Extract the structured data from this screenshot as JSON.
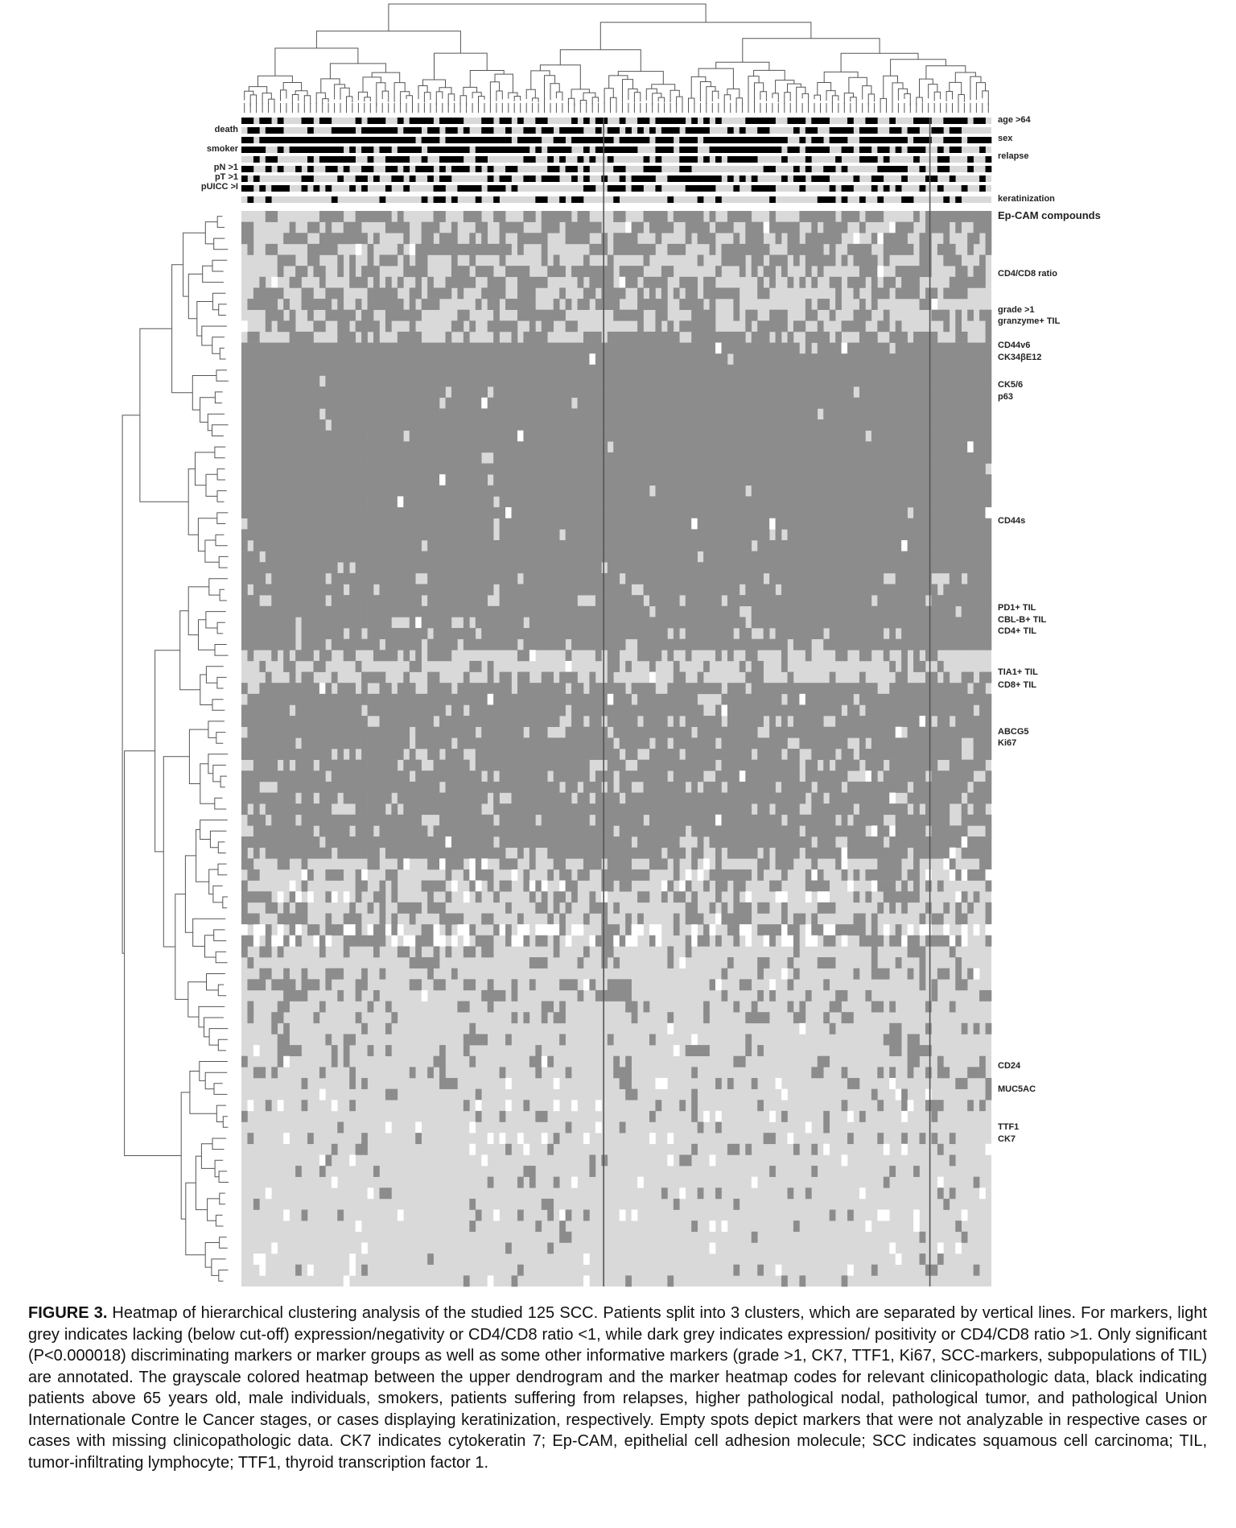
{
  "figure": {
    "label": "FIGURE 3.",
    "caption": "Heatmap of hierarchical clustering analysis of the studied 125 SCC. Patients split into 3 clusters, which are separated by vertical lines. For markers, light grey indicates lacking (below cut-off) expression/negativity or CD4/CD8 ratio <1, while dark grey indicates expression/ positivity or CD4/CD8 ratio >1. Only significant (P<0.000018) discriminating markers or marker groups as well as some other informative markers (grade >1, CK7, TTF1, Ki67, SCC-markers, subpopulations of TIL) are annotated. The grayscale colored heatmap between the upper dendrogram and the marker heatmap codes for relevant clinicopathologic data, black indicating patients above 65 years old, male individuals, smokers, patients suffering from relapses, higher pathological nodal, pathological tumor, and pathological Union Internationale Contre le Cancer stages, or cases displaying keratinization, respectively. Empty spots depict markers that were not analyzable in respective cases or cases with missing clinicopathologic data. CK7 indicates cytokeratin 7; Ep-CAM, epithelial cell adhesion molecule; SCC indicates squamous cell carcinoma; TIL, tumor-infiltrating lymphocyte; TTF1, thyroid transcription factor 1."
  },
  "clinical_labels_left": [
    "death",
    "smoker",
    "pN >1",
    "pT >1",
    "pUICC >I"
  ],
  "clinical_labels_right": [
    "age >64",
    "sex",
    "relapse",
    "keratinization"
  ],
  "marker_labels": [
    "Ep-CAM compounds",
    "CD4/CD8 ratio",
    "grade >1",
    "granzyme+ TIL",
    "CD44v6",
    "CK34βE12",
    "CK5/6",
    "p63",
    "CD44s",
    "PD1+ TIL",
    "CBL-B+ TIL",
    "CD4+ TIL",
    "TIA1+ TIL",
    "CD8+ TIL",
    "ABCG5",
    "Ki67",
    "CD24",
    "MUC5AC",
    "TTF1",
    "CK7"
  ],
  "chart_data": {
    "type": "heatmap",
    "n_patients": 125,
    "n_clusters": 3,
    "colors": {
      "negative": "#d9d9d9",
      "positive": "#8c8c8c",
      "missing": "#ffffff",
      "clinical_positive": "#000000",
      "clinical_negative": "#d9d9d9",
      "separator": "#555555"
    }
  }
}
